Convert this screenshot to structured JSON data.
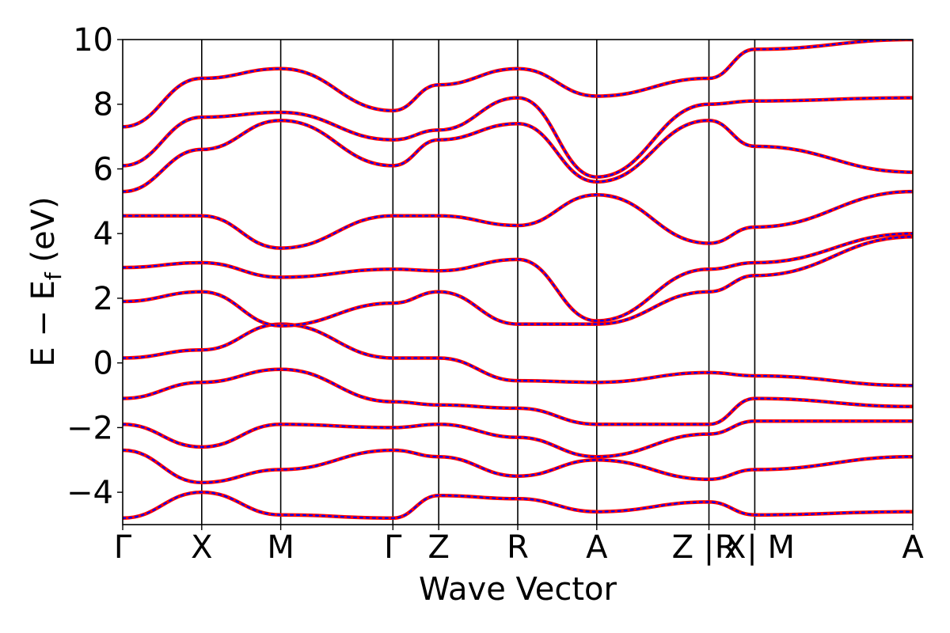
{
  "chart_data": {
    "type": "line",
    "title": "",
    "xlabel": "Wave Vector",
    "ylabel": "E − E",
    "ylabel_subscript": "f",
    "ylabel_unit": " (eV)",
    "ylim": [
      -5,
      10
    ],
    "yticks": [
      -4,
      -2,
      0,
      2,
      4,
      6,
      8,
      10
    ],
    "ytick_labels": [
      "−4",
      "−2",
      "0",
      "2",
      "4",
      "6",
      "8",
      "10"
    ],
    "xlim": [
      0,
      10
    ],
    "kpath": [
      {
        "label": "Γ",
        "x": 0.0
      },
      {
        "label": "X",
        "x": 1.0
      },
      {
        "label": "M",
        "x": 2.0
      },
      {
        "label": "Γ",
        "x": 3.42
      },
      {
        "label": "Z",
        "x": 4.0
      },
      {
        "label": "R",
        "x": 5.0
      },
      {
        "label": "A",
        "x": 6.0
      },
      {
        "label": "Z | X",
        "x": 7.42
      },
      {
        "label": "R | M",
        "x": 8.0
      },
      {
        "label": "A",
        "x": 10.0
      }
    ],
    "overlay_styles": [
      {
        "name": "",
        "color": "#ff0000",
        "style": "solid"
      },
      {
        "name": "",
        "color": "#0000ff",
        "style": "dotted"
      }
    ],
    "series": [
      {
        "name": "",
        "x": [
          0,
          1,
          2,
          3.42,
          4,
          5,
          6,
          7.42,
          8,
          10
        ],
        "values": [
          0.15,
          0.4,
          1.2,
          0.15,
          0.15,
          -0.55,
          -0.6,
          -0.3,
          -0.4,
          -0.7
        ]
      },
      {
        "name": "",
        "x": [
          0,
          1,
          2,
          3.42,
          4,
          5,
          6,
          7.42,
          8,
          10
        ],
        "values": [
          1.9,
          2.2,
          1.15,
          1.85,
          2.2,
          1.2,
          1.2,
          2.2,
          2.7,
          3.9
        ]
      },
      {
        "name": "",
        "x": [
          0,
          1,
          2,
          3.42,
          4,
          5,
          6,
          7.42,
          8,
          10
        ],
        "values": [
          2.95,
          3.1,
          2.65,
          2.9,
          2.85,
          3.2,
          1.3,
          2.9,
          3.1,
          4.0
        ]
      },
      {
        "name": "",
        "x": [
          0,
          1,
          2,
          3.42,
          4,
          5,
          6,
          7.42,
          8,
          10
        ],
        "values": [
          4.55,
          4.55,
          3.55,
          4.55,
          4.55,
          4.25,
          5.2,
          3.7,
          4.2,
          5.3
        ]
      },
      {
        "name": "",
        "x": [
          0,
          1,
          2,
          3.42,
          4,
          5,
          6,
          7.42,
          8,
          10
        ],
        "values": [
          5.3,
          6.6,
          7.5,
          6.1,
          6.9,
          7.4,
          5.6,
          7.5,
          6.7,
          5.9
        ]
      },
      {
        "name": "",
        "x": [
          0,
          1,
          2,
          3.42,
          4,
          5,
          6,
          7.42,
          8,
          10
        ],
        "values": [
          6.1,
          7.6,
          7.75,
          6.9,
          7.2,
          8.2,
          5.75,
          8.0,
          8.1,
          8.2
        ]
      },
      {
        "name": "",
        "x": [
          0,
          1,
          2,
          3.42,
          4,
          5,
          6,
          7.42,
          8,
          10
        ],
        "values": [
          7.3,
          8.8,
          9.1,
          7.8,
          8.6,
          9.1,
          8.25,
          8.8,
          9.7,
          10.0
        ]
      },
      {
        "name": "",
        "x": [
          0,
          1,
          2,
          3.42,
          4,
          5,
          6,
          7.42,
          8,
          10
        ],
        "values": [
          -1.1,
          -0.6,
          -0.2,
          -1.2,
          -1.3,
          -1.4,
          -1.9,
          -1.9,
          -1.1,
          -1.35
        ]
      },
      {
        "name": "",
        "x": [
          0,
          1,
          2,
          3.42,
          4,
          5,
          6,
          7.42,
          8,
          10
        ],
        "values": [
          -1.9,
          -2.6,
          -1.9,
          -2.0,
          -1.9,
          -2.3,
          -2.9,
          -2.2,
          -1.8,
          -1.8
        ]
      },
      {
        "name": "",
        "x": [
          0,
          1,
          2,
          3.42,
          4,
          5,
          6,
          7.42,
          8,
          10
        ],
        "values": [
          -2.7,
          -3.7,
          -3.3,
          -2.7,
          -2.9,
          -3.5,
          -3.0,
          -3.6,
          -3.3,
          -2.9
        ]
      },
      {
        "name": "",
        "x": [
          0,
          1,
          2,
          3.42,
          4,
          5,
          6,
          7.42,
          8,
          10
        ],
        "values": [
          -4.8,
          -4.0,
          -4.7,
          -4.8,
          -4.1,
          -4.2,
          -4.6,
          -4.3,
          -4.7,
          -4.6
        ]
      }
    ]
  }
}
